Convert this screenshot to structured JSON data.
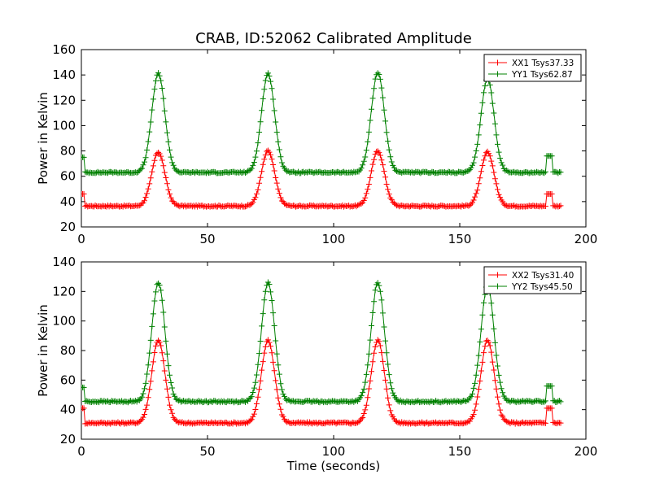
{
  "figure": {
    "title": "CRAB, ID:52062 Calibrated Amplitude"
  },
  "chart_data": [
    {
      "type": "line",
      "title": "CRAB, ID:52062 Calibrated Amplitude",
      "xlabel": "",
      "ylabel": "Power in Kelvin",
      "xlim": [
        0,
        200
      ],
      "ylim": [
        20,
        160
      ],
      "xticks": [
        0,
        50,
        100,
        150,
        200
      ],
      "yticks": [
        20,
        40,
        60,
        80,
        100,
        120,
        140,
        160
      ],
      "grid": false,
      "legend_position": "top-right",
      "peak_centers": [
        30.5,
        74,
        117.5,
        161
      ],
      "series": [
        {
          "name": "XX1 Tsys37.33",
          "color": "#ff0000",
          "marker": "+",
          "x_range": [
            0,
            190
          ],
          "start_value": 46,
          "baseline": 36.5,
          "peaks": [
            79,
            80,
            80,
            79
          ],
          "secondary_bump": {
            "x_range": [
              184.5,
              186.5
            ],
            "value": 46
          }
        },
        {
          "name": "YY1 Tsys62.87",
          "color": "#008000",
          "marker": "+",
          "x_range": [
            0,
            190
          ],
          "start_value": 75,
          "baseline": 63,
          "peaks": [
            141,
            141,
            142,
            137
          ],
          "secondary_bump": {
            "x_range": [
              184.5,
              186.5
            ],
            "value": 76
          }
        }
      ]
    },
    {
      "type": "line",
      "title": "",
      "xlabel": "Time (seconds)",
      "ylabel": "Power in Kelvin",
      "xlim": [
        0,
        200
      ],
      "ylim": [
        20,
        140
      ],
      "xticks": [
        0,
        50,
        100,
        150,
        200
      ],
      "yticks": [
        20,
        40,
        60,
        80,
        100,
        120,
        140
      ],
      "grid": false,
      "legend_position": "top-right",
      "peak_centers": [
        30.5,
        74,
        117.5,
        161
      ],
      "series": [
        {
          "name": "XX2 Tsys31.40",
          "color": "#ff0000",
          "marker": "+",
          "x_range": [
            0,
            190
          ],
          "start_value": 41,
          "baseline": 31,
          "peaks": [
            87,
            87,
            87,
            87
          ],
          "secondary_bump": {
            "x_range": [
              184.5,
              186.5
            ],
            "value": 41
          }
        },
        {
          "name": "YY2 Tsys45.50",
          "color": "#008000",
          "marker": "+",
          "x_range": [
            0,
            190
          ],
          "start_value": 55,
          "baseline": 45.5,
          "peaks": [
            126,
            126,
            126,
            124
          ],
          "secondary_bump": {
            "x_range": [
              184.5,
              186.5
            ],
            "value": 56
          }
        }
      ]
    }
  ]
}
